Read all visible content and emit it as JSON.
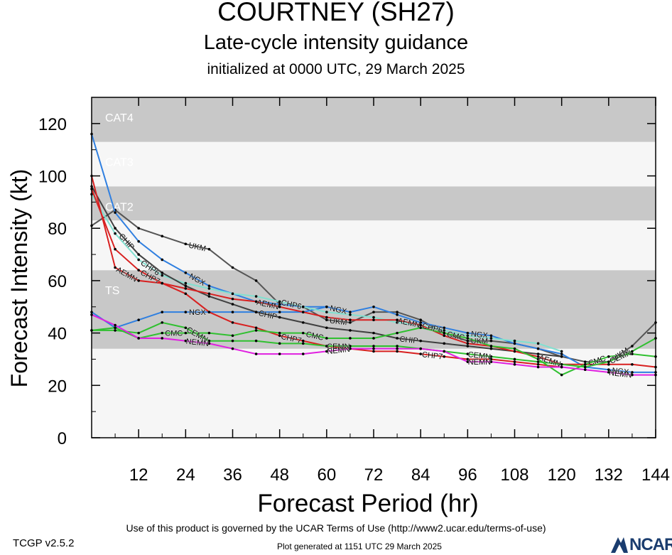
{
  "title": "COURTNEY (SH27)",
  "subtitle": "Late-cycle intensity guidance",
  "init_line": "initialized at 0000 UTC, 29 March 2025",
  "footer": {
    "terms": "Use of this product is governed by the UCAR Terms of Use (http://www2.ucar.edu/terms-of-use)",
    "version": "TCGP v2.5.2",
    "generated": "Plot generated at 1151 UTC   29 March 2025",
    "logo_text": "NCAR"
  },
  "chart_data": {
    "type": "line",
    "title": "COURTNEY (SH27)",
    "xlabel": "Forecast Period (hr)",
    "ylabel": "Forecast Intensity (kt)",
    "xlim": [
      0,
      144
    ],
    "ylim": [
      0,
      130
    ],
    "xticks": [
      12,
      24,
      36,
      48,
      60,
      72,
      84,
      96,
      108,
      120,
      132,
      144
    ],
    "yticks": [
      0,
      20,
      40,
      60,
      80,
      100,
      120
    ],
    "grid": false,
    "bands": [
      {
        "label": "TS",
        "from": 34,
        "to": 64,
        "color": "#c8c8c8"
      },
      {
        "label": "CAT1",
        "from": 64,
        "to": 83,
        "color": "#f6f6f6"
      },
      {
        "label": "CAT2",
        "from": 83,
        "to": 96,
        "color": "#c8c8c8"
      },
      {
        "label": "CAT3",
        "from": 96,
        "to": 113,
        "color": "#f6f6f6"
      },
      {
        "label": "CAT4",
        "from": 113,
        "to": 130,
        "color": "#c8c8c8"
      }
    ],
    "background_color": "#f6f6f6",
    "series": [
      {
        "name": "UKM",
        "color": "#555555",
        "label_at": 28,
        "points": [
          [
            0,
            81
          ],
          [
            6,
            87
          ],
          [
            12,
            80
          ],
          [
            18,
            77
          ],
          [
            24,
            74
          ],
          [
            30,
            72
          ],
          [
            36,
            65
          ],
          [
            42,
            60
          ],
          [
            48,
            51
          ],
          [
            54,
            50
          ],
          [
            60,
            45
          ],
          [
            66,
            44
          ],
          [
            72,
            48
          ],
          [
            78,
            48
          ],
          [
            84,
            45
          ],
          [
            90,
            40
          ],
          [
            96,
            37
          ],
          [
            102,
            37
          ],
          [
            108,
            36
          ],
          [
            114,
            34
          ],
          [
            120,
            31
          ],
          [
            126,
            29
          ],
          [
            132,
            29
          ],
          [
            138,
            35
          ],
          [
            144,
            44
          ]
        ]
      },
      {
        "name": "NGX",
        "color": "#2f7fe0",
        "label_at": 30,
        "points": [
          [
            0,
            116
          ],
          [
            6,
            86
          ],
          [
            12,
            75
          ],
          [
            18,
            68
          ],
          [
            24,
            63
          ],
          [
            30,
            58
          ],
          [
            36,
            55
          ],
          [
            42,
            52
          ],
          [
            48,
            51
          ],
          [
            54,
            50
          ],
          [
            60,
            50
          ],
          [
            66,
            48
          ],
          [
            72,
            50
          ],
          [
            78,
            47
          ],
          [
            84,
            44
          ],
          [
            90,
            42
          ],
          [
            96,
            40
          ],
          [
            102,
            39
          ],
          [
            108,
            36
          ],
          [
            114,
            34
          ],
          [
            120,
            32
          ],
          [
            126,
            27
          ],
          [
            132,
            26
          ],
          [
            138,
            25
          ],
          [
            144,
            25
          ]
        ]
      },
      {
        "name": "NGX",
        "color": "#2f7fe0",
        "label_at": 30,
        "points": [
          [
            0,
            48
          ],
          [
            6,
            42
          ],
          [
            12,
            45
          ],
          [
            18,
            48
          ],
          [
            24,
            48
          ],
          [
            30,
            48
          ],
          [
            36,
            48
          ],
          [
            42,
            48
          ],
          [
            48,
            48
          ],
          [
            54,
            48
          ],
          [
            60,
            50
          ]
        ]
      },
      {
        "name": "CHP6",
        "color": "#80e0d0",
        "label_at": 18,
        "points": [
          [
            0,
            93
          ],
          [
            6,
            78
          ],
          [
            12,
            68
          ],
          [
            18,
            62
          ],
          [
            24,
            59
          ],
          [
            30,
            57
          ],
          [
            36,
            55
          ],
          [
            42,
            54
          ],
          [
            48,
            52
          ],
          [
            54,
            50
          ],
          [
            60,
            48
          ],
          [
            66,
            47
          ],
          [
            72,
            46
          ],
          [
            78,
            44
          ],
          [
            84,
            43
          ],
          [
            90,
            41
          ],
          [
            96,
            39
          ],
          [
            102,
            38
          ],
          [
            108,
            37
          ],
          [
            114,
            36
          ],
          [
            120,
            33
          ]
        ]
      },
      {
        "name": "CHIP",
        "color": "#404040",
        "label_at": 12,
        "points": [
          [
            0,
            96
          ],
          [
            6,
            80
          ],
          [
            12,
            70
          ],
          [
            18,
            63
          ],
          [
            24,
            58
          ],
          [
            30,
            54
          ],
          [
            36,
            51
          ],
          [
            42,
            48
          ],
          [
            48,
            46
          ],
          [
            54,
            44
          ],
          [
            60,
            42
          ],
          [
            66,
            41
          ],
          [
            72,
            40
          ],
          [
            78,
            38
          ],
          [
            84,
            37
          ],
          [
            90,
            36
          ],
          [
            96,
            35
          ],
          [
            102,
            34
          ],
          [
            108,
            33
          ],
          [
            114,
            32
          ],
          [
            120,
            31
          ]
        ]
      },
      {
        "name": "AEMN",
        "color": "#d82020",
        "label_at": 12,
        "points": [
          [
            0,
            100
          ],
          [
            6,
            65
          ],
          [
            12,
            60
          ],
          [
            18,
            59
          ],
          [
            24,
            57
          ],
          [
            30,
            55
          ],
          [
            36,
            53
          ],
          [
            42,
            52
          ],
          [
            48,
            50
          ],
          [
            54,
            48
          ],
          [
            60,
            46
          ],
          [
            66,
            45
          ],
          [
            72,
            45
          ],
          [
            78,
            45
          ],
          [
            84,
            43
          ],
          [
            90,
            39
          ],
          [
            96,
            36
          ],
          [
            102,
            35
          ],
          [
            108,
            33
          ],
          [
            114,
            31
          ],
          [
            120,
            28
          ],
          [
            126,
            28
          ],
          [
            132,
            28
          ],
          [
            138,
            28
          ],
          [
            144,
            27
          ]
        ]
      },
      {
        "name": "CHP7",
        "color": "#d82020",
        "label_at": 18,
        "points": [
          [
            0,
            95
          ],
          [
            6,
            72
          ],
          [
            12,
            64
          ],
          [
            18,
            59
          ],
          [
            24,
            55
          ],
          [
            30,
            48
          ],
          [
            36,
            44
          ],
          [
            42,
            42
          ],
          [
            48,
            39
          ],
          [
            54,
            37
          ],
          [
            60,
            35
          ],
          [
            66,
            34
          ],
          [
            72,
            33
          ],
          [
            78,
            33
          ],
          [
            84,
            32
          ],
          [
            90,
            31
          ],
          [
            96,
            30
          ],
          [
            102,
            30
          ],
          [
            108,
            29
          ],
          [
            114,
            28
          ],
          [
            120,
            27
          ]
        ]
      },
      {
        "name": "CMC",
        "color": "#30c030",
        "label_at": 24,
        "points": [
          [
            0,
            41
          ],
          [
            6,
            42
          ],
          [
            12,
            38
          ],
          [
            18,
            40
          ],
          [
            24,
            40
          ],
          [
            30,
            40
          ],
          [
            36,
            39
          ],
          [
            42,
            41
          ],
          [
            48,
            40
          ],
          [
            54,
            40
          ],
          [
            60,
            38
          ],
          [
            66,
            38
          ],
          [
            72,
            38
          ],
          [
            78,
            40
          ],
          [
            84,
            42
          ],
          [
            90,
            40
          ],
          [
            96,
            38
          ],
          [
            102,
            35
          ],
          [
            108,
            34
          ],
          [
            114,
            30
          ],
          [
            120,
            24
          ],
          [
            126,
            28
          ],
          [
            132,
            31
          ],
          [
            138,
            32
          ],
          [
            144,
            31
          ]
        ]
      },
      {
        "name": "CEMN",
        "color": "#30c030",
        "label_at": 30,
        "points": [
          [
            0,
            41
          ],
          [
            6,
            41
          ],
          [
            12,
            40
          ],
          [
            18,
            44
          ],
          [
            24,
            42
          ],
          [
            30,
            37
          ],
          [
            36,
            37
          ],
          [
            42,
            37
          ],
          [
            48,
            36
          ],
          [
            54,
            36
          ],
          [
            60,
            35
          ],
          [
            66,
            35
          ],
          [
            72,
            35
          ],
          [
            78,
            35
          ],
          [
            84,
            34
          ],
          [
            90,
            33
          ],
          [
            96,
            32
          ],
          [
            102,
            31
          ],
          [
            108,
            30
          ],
          [
            114,
            29
          ],
          [
            120,
            28
          ],
          [
            126,
            27
          ],
          [
            132,
            29
          ],
          [
            138,
            33
          ],
          [
            144,
            38
          ]
        ]
      },
      {
        "name": "NEMN",
        "color": "#e020e0",
        "label_at": 30,
        "points": [
          [
            0,
            47
          ],
          [
            6,
            43
          ],
          [
            12,
            38
          ],
          [
            18,
            38
          ],
          [
            24,
            37
          ],
          [
            30,
            36
          ],
          [
            36,
            34
          ],
          [
            42,
            32
          ],
          [
            48,
            32
          ],
          [
            54,
            32
          ],
          [
            60,
            33
          ],
          [
            66,
            34
          ],
          [
            72,
            34
          ],
          [
            78,
            34
          ],
          [
            84,
            34
          ],
          [
            90,
            33
          ],
          [
            96,
            29
          ],
          [
            102,
            29
          ],
          [
            108,
            28
          ],
          [
            114,
            27
          ],
          [
            120,
            27
          ],
          [
            126,
            26
          ],
          [
            132,
            25
          ],
          [
            138,
            24
          ],
          [
            144,
            24
          ]
        ]
      }
    ]
  }
}
